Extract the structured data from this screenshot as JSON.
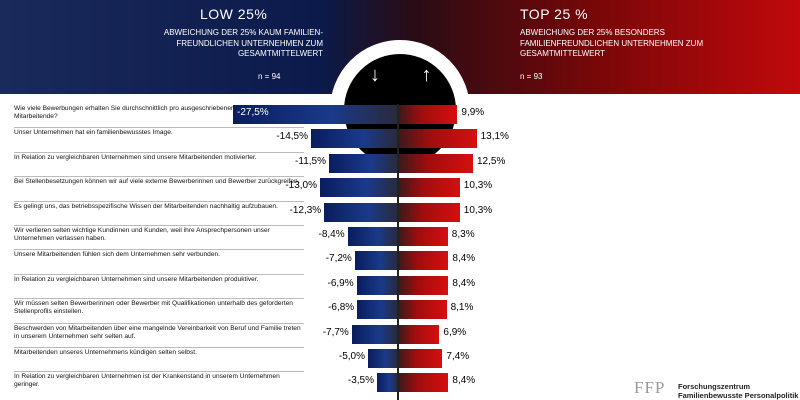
{
  "header": {
    "low": {
      "title": "LOW 25%",
      "subtitle_lines": [
        "ABWEICHUNG DER 25% KAUM FAMILIEN-",
        "FREUNDLICHEN UNTERNEHMEN ZUM",
        "GESAMTMITTELWERT"
      ],
      "n": "n = 94"
    },
    "top": {
      "title": "TOP 25 %",
      "subtitle_lines": [
        "ABWEICHUNG DER 25% BESONDERS",
        "FAMILIENFREUNDLICHEN UNTERNEHMEN ZUM",
        "GESAMTMITTELWERT"
      ],
      "n": "n = 93"
    },
    "arrows": "↓ ↑"
  },
  "logo": {
    "mark": "FFP",
    "line1": "Forschungszentrum",
    "line2": "Familienbewusste Personalpolitik"
  },
  "colors": {
    "low": "#0a1d5e",
    "top": "#d60f10"
  },
  "chart_data": {
    "type": "bar",
    "orientation": "horizontal-diverging",
    "xlim": [
      -30,
      15
    ],
    "categories": [
      "Wie viele Bewerbungen erhalten Sie durchschnittlich pro ausgeschriebener Stelle für wichtige Mitarbeitende?",
      "Unser Unternehmen hat ein familienbewusstes Image.",
      "In Relation zu vergleichbaren Unternehmen sind unsere Mitarbeitenden motivierter.",
      "Bei Stellenbesetzungen können wir auf viele externe Bewerberinnen und Bewerber zurückgreifen.",
      "Es gelingt uns, das betriebsspezifische Wissen der Mitarbeitenden nachhaltig aufzubauen.",
      "Wir verlieren selten wichtige Kundinnen und Kunden, weil ihre Ansprechpersonen unser Unternehmen verlassen haben.",
      "Unsere Mitarbeitenden fühlen sich dem Unternehmen sehr verbunden.",
      "In Relation zu vergleichbaren Unternehmen sind unsere Mitarbeitenden produktiver.",
      "Wir müssen selten Bewerberinnen oder Bewerber mit Qualifikationen unterhalb des geforderten Stellenprofils einstellen.",
      "Beschwerden von Mitarbeitenden über eine mangelnde Vereinbarkeit von Beruf und Familie treten in unserem Unternehmen sehr selten auf.",
      "Mitarbeitenden unseres Unternehmens kündigen selten selbst.",
      "In Relation zu vergleichbaren Unternehmen ist der Krankenstand in unserem Unternehmen geringer."
    ],
    "series": [
      {
        "name": "LOW 25%",
        "values": [
          -27.5,
          -14.5,
          -11.5,
          -13.0,
          -12.3,
          -8.4,
          -7.2,
          -6.9,
          -6.8,
          -7.7,
          -5.0,
          -3.5
        ],
        "labels": [
          "-27,5%",
          "-14,5%",
          "-11,5%",
          "-13,0%",
          "-12,3%",
          "-8,4%",
          "-7,2%",
          "-6,9%",
          "-6,8%",
          "-7,7%",
          "-5,0%",
          "-3,5%"
        ]
      },
      {
        "name": "TOP 25 %",
        "values": [
          9.9,
          13.1,
          12.5,
          10.3,
          10.3,
          8.3,
          8.4,
          8.4,
          8.1,
          6.9,
          7.4,
          8.4
        ],
        "labels": [
          "9,9%",
          "13,1%",
          "12,5%",
          "10,3%",
          "10,3%",
          "8,3%",
          "8,4%",
          "8,4%",
          "8,1%",
          "6,9%",
          "7,4%",
          "8,4%"
        ]
      }
    ]
  }
}
